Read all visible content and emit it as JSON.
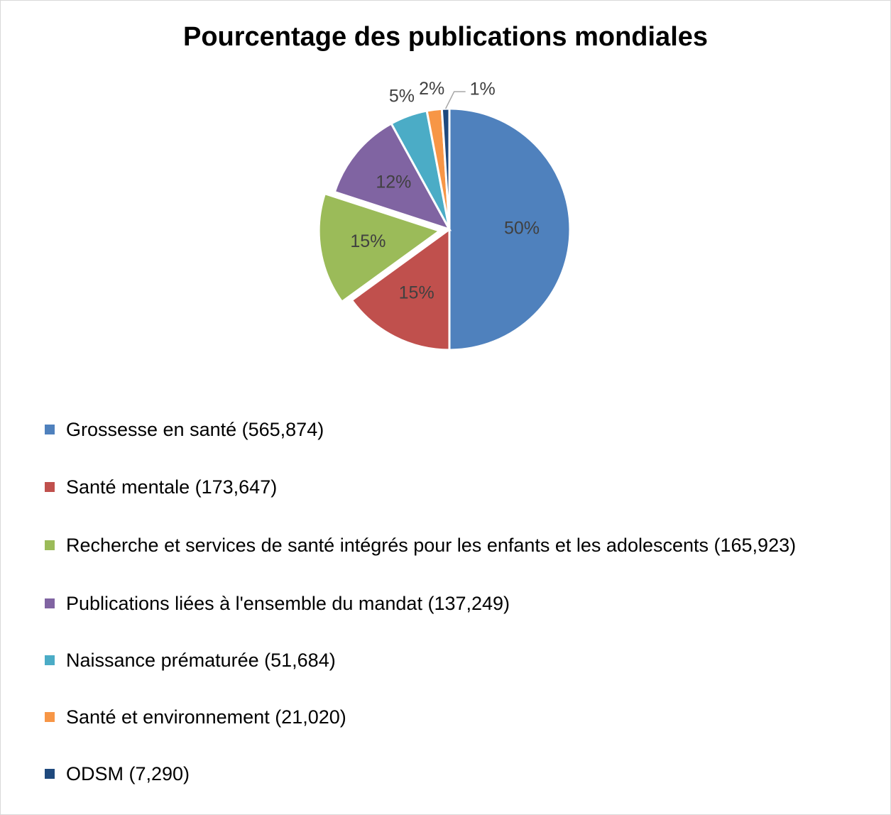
{
  "chart_data": {
    "type": "pie",
    "title": "Pourcentage des publications mondiales",
    "categories": [
      "Grossesse en santé (565,874)",
      "Santé mentale (173,647)",
      "Recherche et services de santé intégrés pour les enfants et les adolescents (165,923)",
      "Publications liées à l'ensemble du mandat (137,249)",
      "Naissance prématurée (51,684)",
      "Santé et environnement (21,020)",
      "ODSM (7,290)"
    ],
    "values": [
      50,
      15,
      15,
      12,
      5,
      2,
      1
    ],
    "value_labels": [
      "50%",
      "15%",
      "15%",
      "12%",
      "5%",
      "2%",
      "1%"
    ],
    "colors": [
      "#4f81bd",
      "#c0504d",
      "#9bbb59",
      "#8064a2",
      "#4bacc6",
      "#f79646",
      "#1f497d"
    ],
    "legend": "bottom"
  }
}
